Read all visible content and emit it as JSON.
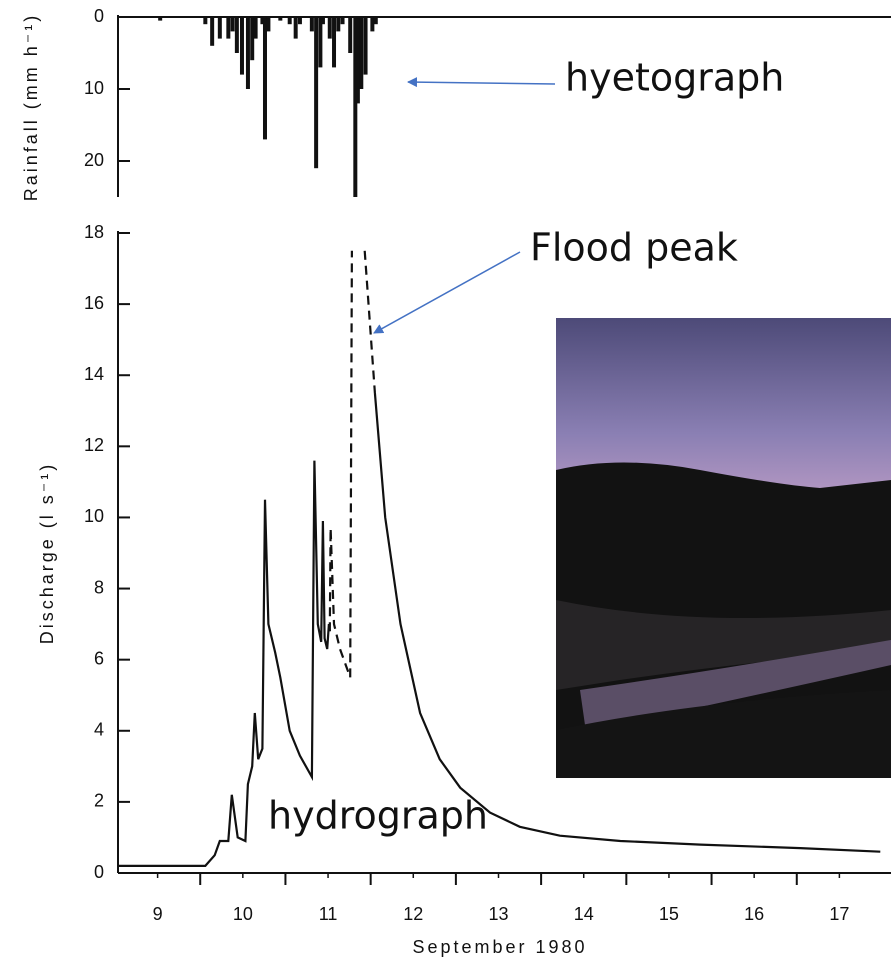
{
  "chart_data": [
    {
      "type": "bar",
      "ylabel": "Rainfall (mm h⁻¹)",
      "x": [
        9.53,
        10.06,
        10.14,
        10.23,
        10.33,
        10.38,
        10.43,
        10.49,
        10.56,
        10.61,
        10.65,
        10.73,
        10.76,
        10.8,
        10.94,
        11.05,
        11.12,
        11.17,
        11.31,
        11.36,
        11.41,
        11.44,
        11.52,
        11.57,
        11.62,
        11.67,
        11.76,
        11.82,
        11.85,
        11.89,
        11.94,
        12.02,
        12.06
      ],
      "values": [
        0.5,
        1,
        4,
        3,
        3,
        2,
        5,
        8,
        10,
        6,
        3,
        1,
        17,
        2,
        0.5,
        1,
        3,
        1,
        2,
        21,
        7,
        1,
        3,
        7,
        2,
        1,
        5,
        25,
        12,
        10,
        8,
        2,
        1
      ],
      "color": "#111111",
      "xlim": [
        9,
        18
      ],
      "ylim": [
        0,
        25
      ],
      "yticks": [
        0,
        10,
        20
      ],
      "inverted": true,
      "annotations": [
        "hyetograph"
      ]
    },
    {
      "type": "line",
      "ylabel": "Discharge (l s⁻¹)",
      "xlabel": "September 1980",
      "series": [
        {
          "color": "#111111",
          "dashed": false,
          "x": [
            9.04,
            10.06,
            10.17,
            10.23,
            10.33,
            10.37,
            10.44,
            10.53,
            10.56,
            10.61,
            10.64,
            10.68,
            10.73,
            10.76,
            10.8,
            10.88,
            10.94,
            11.05,
            11.17,
            11.31,
            11.34,
            11.38,
            11.42,
            11.44,
            11.46,
            11.49,
            11.51,
            11.52
          ],
          "values": [
            0.2,
            0.2,
            0.5,
            0.9,
            0.9,
            2.2,
            1.0,
            0.9,
            2.5,
            3.0,
            4.5,
            3.2,
            3.5,
            10.5,
            7.0,
            6.2,
            5.5,
            4.0,
            3.3,
            2.7,
            11.6,
            7.0,
            6.5,
            9.9,
            6.6,
            6.3,
            7.0,
            6.8
          ]
        },
        {
          "color": "#111111",
          "dashed": true,
          "x": [
            11.52,
            11.53,
            11.57,
            11.64,
            11.76,
            11.78
          ],
          "values": [
            6.8,
            9.7,
            7.0,
            6.3,
            5.5,
            17.5
          ]
        },
        {
          "color": "#111111",
          "dashed": true,
          "x": [
            11.93,
            11.99,
            12.05
          ],
          "values": [
            17.5,
            15.5,
            13.5
          ]
        },
        {
          "color": "#111111",
          "dashed": false,
          "x": [
            12.05,
            12.17,
            12.35,
            12.58,
            12.81,
            13.05,
            13.4,
            13.75,
            14.22,
            14.93,
            15.87,
            17.04,
            17.98
          ],
          "values": [
            13.5,
            10,
            7,
            4.5,
            3.2,
            2.4,
            1.7,
            1.3,
            1.05,
            0.9,
            0.8,
            0.7,
            0.6
          ]
        }
      ],
      "xlim": [
        9,
        18
      ],
      "xticks": [
        {
          "value": 9.5,
          "label": "9"
        },
        {
          "value": 10.5,
          "label": "10"
        },
        {
          "value": 11.5,
          "label": "11"
        },
        {
          "value": 12.5,
          "label": "12"
        },
        {
          "value": 13.5,
          "label": "13"
        },
        {
          "value": 14.5,
          "label": "14"
        },
        {
          "value": 15.5,
          "label": "15"
        },
        {
          "value": 16.5,
          "label": "16"
        },
        {
          "value": 17.5,
          "label": "17"
        }
      ],
      "xtick_marks": [
        10,
        11,
        12,
        13,
        14,
        15,
        16,
        17
      ],
      "ylim": [
        0,
        18
      ],
      "yticks": [
        0,
        2,
        4,
        6,
        8,
        10,
        12,
        14,
        16,
        18
      ],
      "annotations": [
        "Flood peak",
        "hydrograph"
      ]
    }
  ]
}
